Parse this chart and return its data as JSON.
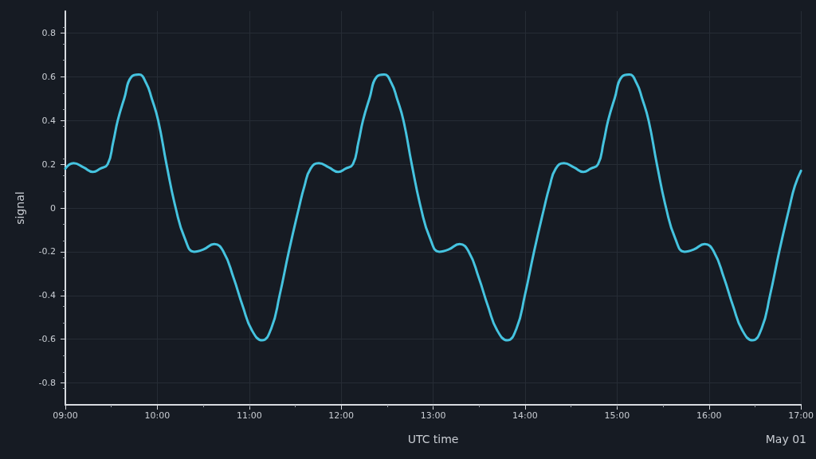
{
  "chart_data": {
    "type": "line",
    "xlabel": "UTC time",
    "ylabel": "signal",
    "x": [
      9.0,
      9.09,
      9.2,
      9.3,
      9.38,
      9.46,
      9.52,
      9.57,
      9.64,
      9.72,
      9.8,
      9.88,
      9.94,
      10.01,
      10.1,
      10.2,
      10.3,
      10.4,
      10.5,
      10.62,
      10.72,
      10.83,
      10.93,
      11.03,
      11.14,
      11.24,
      11.33,
      11.43,
      11.54,
      11.6,
      11.667,
      11.757,
      11.867,
      11.967,
      12.047,
      12.127,
      12.187,
      12.237,
      12.307,
      12.387,
      12.467,
      12.547,
      12.607,
      12.677,
      12.767,
      12.867,
      12.967,
      13.067,
      13.167,
      13.287,
      13.387,
      13.497,
      13.597,
      13.697,
      13.807,
      13.907,
      13.997,
      14.097,
      14.207,
      14.267,
      14.333,
      14.423,
      14.533,
      14.633,
      14.713,
      14.793,
      14.853,
      14.903,
      14.973,
      15.053,
      15.133,
      15.213,
      15.273,
      15.343,
      15.433,
      15.533,
      15.633,
      15.733,
      15.833,
      15.953,
      16.053,
      16.163,
      16.263,
      16.363,
      16.473,
      16.573,
      16.663,
      16.763,
      16.873,
      16.933,
      17.0
    ],
    "series": [
      {
        "color": "#45c3df",
        "values": [
          0.18,
          0.205,
          0.185,
          0.165,
          0.18,
          0.2,
          0.3,
          0.4,
          0.5,
          0.6,
          0.61,
          0.57,
          0.5,
          0.4,
          0.2,
          0.0,
          -0.14,
          -0.2,
          -0.19,
          -0.165,
          -0.2,
          -0.32,
          -0.45,
          -0.56,
          -0.605,
          -0.55,
          -0.4,
          -0.2,
          0.0,
          0.1,
          0.18,
          0.205,
          0.185,
          0.165,
          0.18,
          0.2,
          0.3,
          0.4,
          0.5,
          0.6,
          0.61,
          0.57,
          0.5,
          0.4,
          0.2,
          0.0,
          -0.14,
          -0.2,
          -0.19,
          -0.165,
          -0.2,
          -0.32,
          -0.45,
          -0.56,
          -0.605,
          -0.55,
          -0.4,
          -0.2,
          0.0,
          0.1,
          0.18,
          0.205,
          0.185,
          0.165,
          0.18,
          0.2,
          0.3,
          0.4,
          0.5,
          0.6,
          0.61,
          0.57,
          0.5,
          0.4,
          0.2,
          0.0,
          -0.14,
          -0.2,
          -0.19,
          -0.165,
          -0.2,
          -0.32,
          -0.45,
          -0.56,
          -0.605,
          -0.55,
          -0.4,
          -0.2,
          0.0,
          0.1,
          0.17
        ]
      }
    ],
    "xlim": [
      9,
      17
    ],
    "xticks": [
      {
        "value": 9,
        "label": "09:00"
      },
      {
        "value": 10,
        "label": "10:00"
      },
      {
        "value": 11,
        "label": "11:00"
      },
      {
        "value": 12,
        "label": "12:00"
      },
      {
        "value": 13,
        "label": "13:00"
      },
      {
        "value": 14,
        "label": "14:00"
      },
      {
        "value": 15,
        "label": "15:00"
      },
      {
        "value": 16,
        "label": "16:00"
      },
      {
        "value": 17,
        "label": "17:00"
      }
    ],
    "ylim": [
      -0.9,
      0.9
    ],
    "yticks": [
      -0.8,
      -0.6,
      -0.4,
      -0.2,
      0,
      0.2,
      0.4,
      0.6,
      0.8
    ],
    "grid": true,
    "marker": "none",
    "line_style": "solid",
    "annotations": [
      "May 01"
    ]
  }
}
